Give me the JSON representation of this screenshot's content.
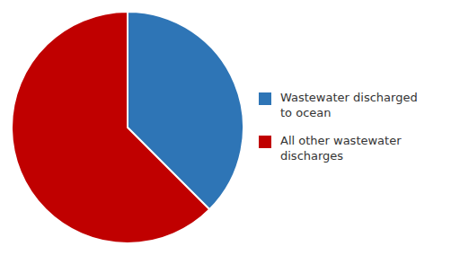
{
  "chart_data": {
    "type": "pie",
    "categories": [
      "Wastewater discharged\nto ocean",
      "All other wastewater\ndischarges"
    ],
    "values": [
      12,
      20
    ],
    "colors": [
      "#2e75b6",
      "#c00000"
    ],
    "legend": "right"
  }
}
